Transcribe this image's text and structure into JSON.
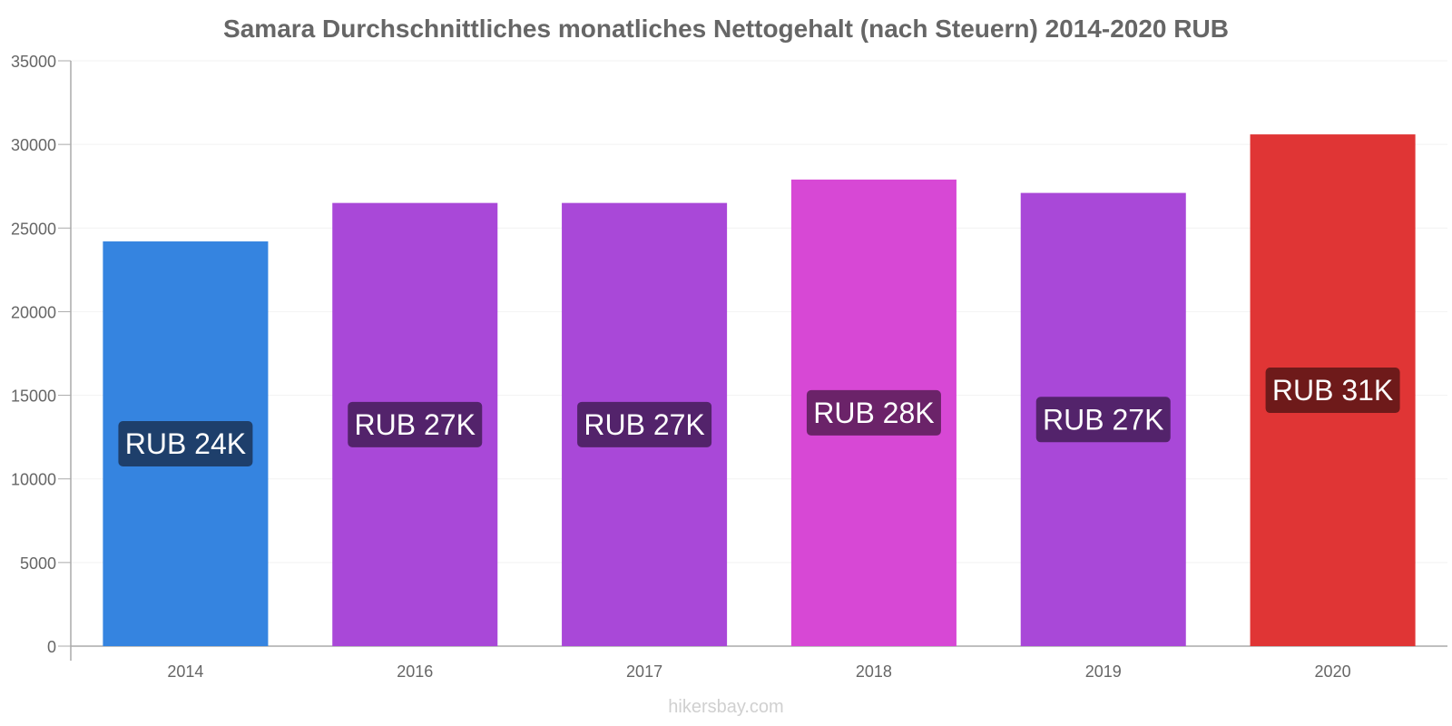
{
  "chart_data": {
    "type": "bar",
    "title": "Samara Durchschnittliches monatliches Nettogehalt (nach Steuern) 2014-2020 RUB",
    "categories": [
      "2014",
      "2016",
      "2017",
      "2018",
      "2019",
      "2020"
    ],
    "values": [
      24200,
      26500,
      26500,
      27900,
      27100,
      30600
    ],
    "value_labels": [
      "RUB 24K",
      "RUB 27K",
      "RUB 27K",
      "RUB 28K",
      "RUB 27K",
      "RUB 31K"
    ],
    "bar_colors": [
      "#3584e0",
      "#a948d8",
      "#a948d8",
      "#d748d5",
      "#a948d8",
      "#e03535"
    ],
    "label_colors": [
      "#1e3f6b",
      "#53236b",
      "#53236b",
      "#6b2369",
      "#53236b",
      "#6e1a1a"
    ],
    "ylim": [
      0,
      35000
    ],
    "yticks": [
      0,
      5000,
      10000,
      15000,
      20000,
      25000,
      30000,
      35000
    ],
    "grid": true,
    "xlabel": "",
    "ylabel": ""
  },
  "watermark": "hikersbay.com"
}
